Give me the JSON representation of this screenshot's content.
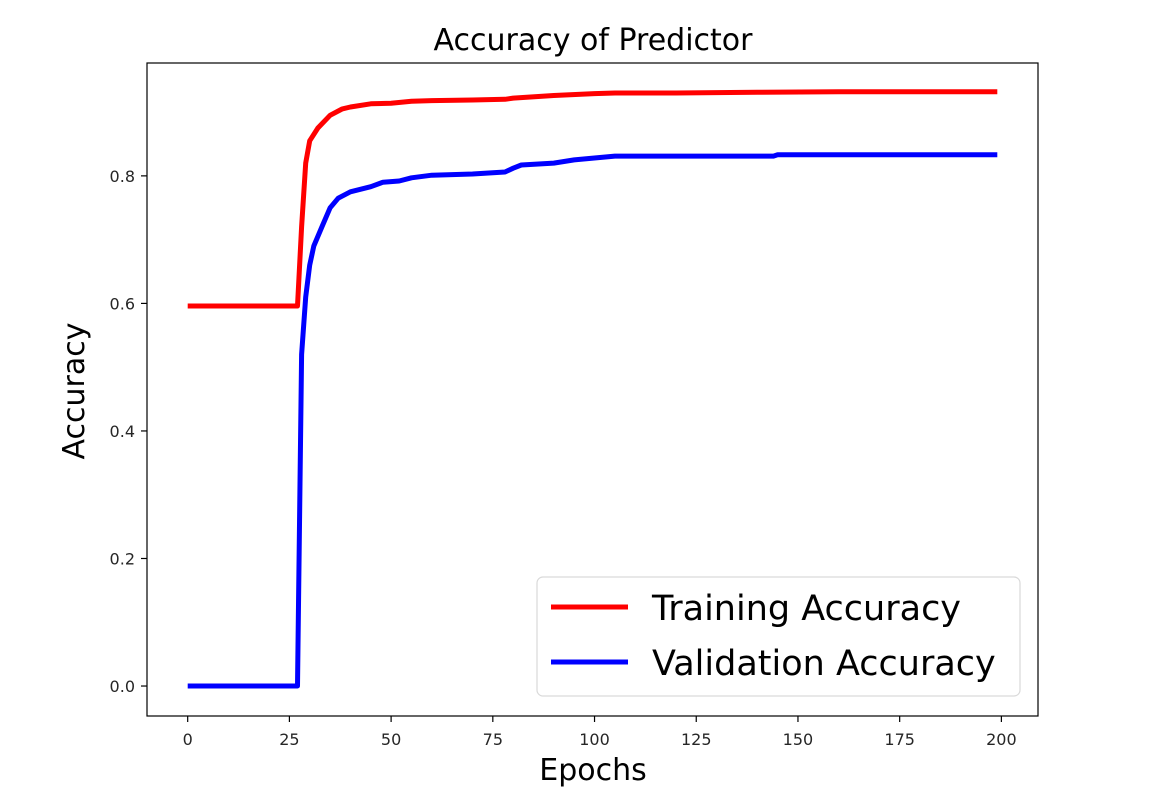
{
  "chart_data": {
    "type": "line",
    "title": "Accuracy of Predictor",
    "xlabel": "Epochs",
    "ylabel": "Accuracy",
    "xlim": [
      -10,
      209
    ],
    "ylim": [
      -0.047,
      0.977
    ],
    "xticks": [
      0,
      25,
      50,
      75,
      100,
      125,
      150,
      175,
      200
    ],
    "yticks": [
      0.0,
      0.2,
      0.4,
      0.6,
      0.8
    ],
    "ytick_labels": [
      "0.0",
      "0.2",
      "0.4",
      "0.6",
      "0.8"
    ],
    "grid": false,
    "legend_position": "lower-right",
    "series": [
      {
        "name": "Training Accuracy",
        "color": "#ff0000",
        "x": [
          0,
          10,
          20,
          27,
          28,
          29,
          30,
          32,
          35,
          38,
          40,
          45,
          50,
          55,
          60,
          70,
          78,
          80,
          90,
          100,
          105,
          120,
          140,
          160,
          180,
          199
        ],
        "y": [
          0.596,
          0.596,
          0.596,
          0.596,
          0.72,
          0.82,
          0.855,
          0.875,
          0.895,
          0.905,
          0.908,
          0.913,
          0.914,
          0.917,
          0.918,
          0.919,
          0.92,
          0.922,
          0.926,
          0.929,
          0.93,
          0.93,
          0.931,
          0.932,
          0.932,
          0.932
        ]
      },
      {
        "name": "Validation Accuracy",
        "color": "#0000ff",
        "x": [
          0,
          10,
          20,
          27,
          28,
          29,
          30,
          31,
          33,
          35,
          37,
          40,
          45,
          48,
          52,
          55,
          60,
          70,
          78,
          80,
          82,
          90,
          95,
          100,
          105,
          120,
          144,
          145,
          160,
          180,
          199
        ],
        "y": [
          0.0,
          0.0,
          0.0,
          0.0,
          0.52,
          0.61,
          0.66,
          0.69,
          0.72,
          0.75,
          0.765,
          0.775,
          0.783,
          0.79,
          0.792,
          0.797,
          0.801,
          0.803,
          0.806,
          0.812,
          0.817,
          0.82,
          0.825,
          0.828,
          0.831,
          0.831,
          0.831,
          0.833,
          0.833,
          0.833,
          0.833
        ]
      }
    ]
  }
}
